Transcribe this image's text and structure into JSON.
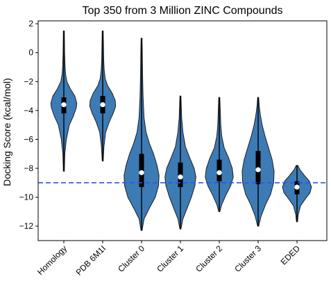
{
  "chart_data": {
    "type": "violin",
    "title": "Top 350 from 3 Million ZINC Compounds",
    "xlabel": "",
    "ylabel": "Docking Score (kcal/mol)",
    "ylim": [
      -13,
      2.2
    ],
    "yticks": [
      2,
      0,
      -2,
      -4,
      -6,
      -8,
      -10,
      -12
    ],
    "grid": false,
    "categories": [
      "Homology",
      "PDB 6M1I",
      "Cluster 0",
      "Cluster 1",
      "Cluster 2",
      "Cluster 3",
      "EDED"
    ],
    "violins": [
      {
        "min": -8.2,
        "max": 1.5,
        "q1": -4.2,
        "q3": -3.1,
        "median": -3.6,
        "profile": [
          [
            -8.2,
            0.02
          ],
          [
            -7,
            0.04
          ],
          [
            -6,
            0.1
          ],
          [
            -5,
            0.22
          ],
          [
            -4.4,
            0.38
          ],
          [
            -3.8,
            0.5
          ],
          [
            -3.5,
            0.52
          ],
          [
            -3,
            0.44
          ],
          [
            -2.5,
            0.26
          ],
          [
            -2,
            0.12
          ],
          [
            -1.5,
            0.07
          ],
          [
            -1,
            0.05
          ],
          [
            0,
            0.03
          ],
          [
            1.5,
            0.02
          ]
        ]
      },
      {
        "min": -7.5,
        "max": 1.5,
        "q1": -4.2,
        "q3": -3.0,
        "median": -3.6,
        "profile": [
          [
            -7.5,
            0.02
          ],
          [
            -6.5,
            0.05
          ],
          [
            -5.5,
            0.12
          ],
          [
            -4.8,
            0.26
          ],
          [
            -4.2,
            0.42
          ],
          [
            -3.7,
            0.52
          ],
          [
            -3.3,
            0.5
          ],
          [
            -2.8,
            0.38
          ],
          [
            -2.3,
            0.2
          ],
          [
            -1.8,
            0.1
          ],
          [
            -1.2,
            0.06
          ],
          [
            -0.5,
            0.04
          ],
          [
            0.5,
            0.03
          ],
          [
            1.5,
            0.02
          ]
        ]
      },
      {
        "min": -12.3,
        "max": 1.0,
        "q1": -9.3,
        "q3": -7.0,
        "median": -8.3,
        "profile": [
          [
            -12.3,
            0.02
          ],
          [
            -11.5,
            0.1
          ],
          [
            -10.8,
            0.3
          ],
          [
            -10,
            0.55
          ],
          [
            -9.2,
            0.68
          ],
          [
            -8.5,
            0.7
          ],
          [
            -7.8,
            0.62
          ],
          [
            -7,
            0.48
          ],
          [
            -6.3,
            0.32
          ],
          [
            -5.5,
            0.18
          ],
          [
            -4.5,
            0.1
          ],
          [
            -3,
            0.06
          ],
          [
            -1.5,
            0.04
          ],
          [
            0,
            0.03
          ],
          [
            1,
            0.02
          ]
        ]
      },
      {
        "min": -12.2,
        "max": -3.0,
        "q1": -9.3,
        "q3": -7.6,
        "median": -8.6,
        "profile": [
          [
            -12.2,
            0.02
          ],
          [
            -11.5,
            0.1
          ],
          [
            -10.8,
            0.26
          ],
          [
            -10,
            0.44
          ],
          [
            -9.2,
            0.58
          ],
          [
            -8.6,
            0.62
          ],
          [
            -8,
            0.55
          ],
          [
            -7.3,
            0.38
          ],
          [
            -6.5,
            0.2
          ],
          [
            -5.5,
            0.1
          ],
          [
            -4.5,
            0.05
          ],
          [
            -3.5,
            0.03
          ],
          [
            -3,
            0.02
          ]
        ]
      },
      {
        "min": -11.0,
        "max": -3.1,
        "q1": -8.9,
        "q3": -7.4,
        "median": -8.3,
        "profile": [
          [
            -11,
            0.02
          ],
          [
            -10.5,
            0.1
          ],
          [
            -9.8,
            0.28
          ],
          [
            -9.2,
            0.46
          ],
          [
            -8.6,
            0.56
          ],
          [
            -8,
            0.52
          ],
          [
            -7.3,
            0.38
          ],
          [
            -6.6,
            0.2
          ],
          [
            -5.8,
            0.1
          ],
          [
            -5,
            0.06
          ],
          [
            -4,
            0.04
          ],
          [
            -3.1,
            0.02
          ]
        ]
      },
      {
        "min": -12.0,
        "max": -3.1,
        "q1": -9.1,
        "q3": -6.8,
        "median": -8.1,
        "profile": [
          [
            -12,
            0.02
          ],
          [
            -11.3,
            0.12
          ],
          [
            -10.5,
            0.3
          ],
          [
            -9.8,
            0.5
          ],
          [
            -9,
            0.62
          ],
          [
            -8.2,
            0.64
          ],
          [
            -7.4,
            0.56
          ],
          [
            -6.6,
            0.42
          ],
          [
            -5.8,
            0.28
          ],
          [
            -5,
            0.16
          ],
          [
            -4.2,
            0.08
          ],
          [
            -3.6,
            0.04
          ],
          [
            -3.1,
            0.02
          ]
        ]
      },
      {
        "min": -11.7,
        "max": -7.8,
        "q1": -9.8,
        "q3": -8.9,
        "median": -9.3,
        "profile": [
          [
            -11.7,
            0.02
          ],
          [
            -11.2,
            0.05
          ],
          [
            -10.6,
            0.14
          ],
          [
            -10.1,
            0.34
          ],
          [
            -9.7,
            0.52
          ],
          [
            -9.3,
            0.58
          ],
          [
            -8.9,
            0.5
          ],
          [
            -8.5,
            0.3
          ],
          [
            -8.1,
            0.12
          ],
          [
            -7.8,
            0.03
          ]
        ]
      }
    ],
    "reference_line": {
      "y": -9.0,
      "style": "dashed",
      "color": "#2f54eb"
    },
    "colors": {
      "violin_fill": "#3d7bb5",
      "violin_edge": "#1f1f1f",
      "box": "#000000",
      "median": "#ffffff"
    }
  }
}
